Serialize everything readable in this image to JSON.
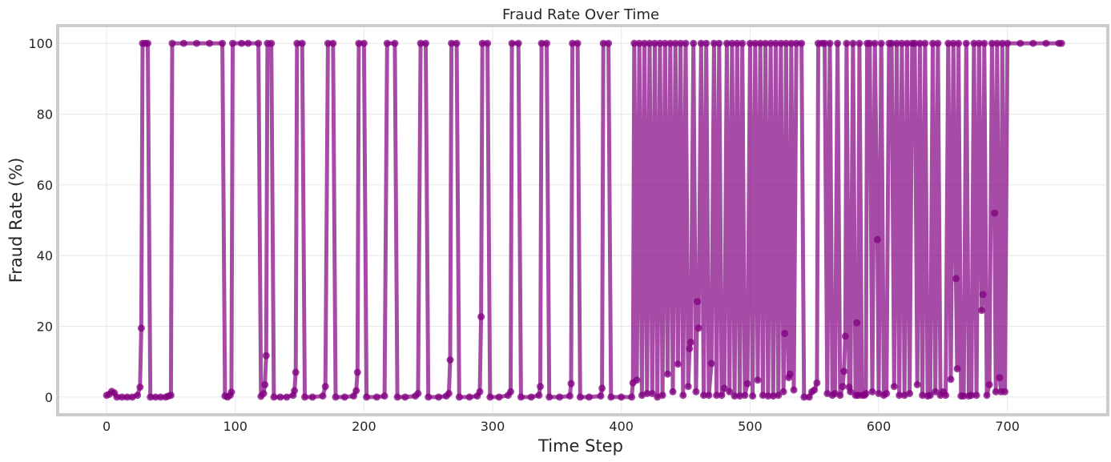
{
  "chart_data": {
    "type": "line",
    "title": "Fraud Rate Over Time",
    "xlabel": "Time Step",
    "ylabel": "Fraud Rate (%)",
    "xlim": [
      -38,
      778
    ],
    "ylim": [
      -5,
      105
    ],
    "x_ticks": [
      0,
      100,
      200,
      300,
      400,
      500,
      600,
      700
    ],
    "y_ticks": [
      0,
      20,
      40,
      60,
      80,
      100
    ],
    "grid": true,
    "legend": "none",
    "colors": {
      "series": "#800080",
      "frame": "#cccccc",
      "grid": "#e8e8e8",
      "text": "#262626"
    },
    "series": [
      {
        "markers": true,
        "points": [
          [
            0,
            0.5
          ],
          [
            2,
            0.8
          ],
          [
            4,
            1.6
          ],
          [
            6,
            1.2
          ],
          [
            8,
            0
          ],
          [
            12,
            0
          ],
          [
            16,
            0
          ],
          [
            20,
            0
          ],
          [
            24,
            0.5
          ],
          [
            26,
            2.8
          ],
          [
            27,
            19.5
          ],
          [
            28,
            100
          ],
          [
            30,
            100
          ],
          [
            32,
            100
          ],
          [
            34,
            0
          ],
          [
            38,
            0
          ],
          [
            42,
            0
          ],
          [
            46,
            0
          ],
          [
            48,
            0.3
          ],
          [
            50,
            0.5
          ],
          [
            51,
            100
          ],
          [
            60,
            100
          ],
          [
            70,
            100
          ],
          [
            80,
            100
          ],
          [
            90,
            100
          ],
          [
            92,
            0.3
          ],
          [
            94,
            0
          ],
          [
            96,
            0.5
          ],
          [
            97,
            1.4
          ],
          [
            98,
            100
          ],
          [
            105,
            100
          ],
          [
            110,
            100
          ],
          [
            118,
            100
          ],
          [
            120,
            0.2
          ],
          [
            122,
            1
          ],
          [
            123,
            3.5
          ],
          [
            124,
            11.7
          ],
          [
            125,
            100
          ],
          [
            128,
            100
          ],
          [
            130,
            0
          ],
          [
            135,
            0
          ],
          [
            140,
            0
          ],
          [
            145,
            0.5
          ],
          [
            146,
            1.8
          ],
          [
            147,
            7
          ],
          [
            148,
            100
          ],
          [
            152,
            100
          ],
          [
            154,
            0
          ],
          [
            160,
            0
          ],
          [
            168,
            0.3
          ],
          [
            170,
            3
          ],
          [
            172,
            100
          ],
          [
            176,
            100
          ],
          [
            178,
            0
          ],
          [
            185,
            0
          ],
          [
            192,
            0.3
          ],
          [
            194,
            1.8
          ],
          [
            195,
            7
          ],
          [
            196,
            100
          ],
          [
            200,
            100
          ],
          [
            202,
            0
          ],
          [
            210,
            0
          ],
          [
            216,
            0.3
          ],
          [
            218,
            100
          ],
          [
            224,
            100
          ],
          [
            226,
            0
          ],
          [
            232,
            0
          ],
          [
            240,
            0.3
          ],
          [
            242,
            1
          ],
          [
            244,
            100
          ],
          [
            248,
            100
          ],
          [
            250,
            0
          ],
          [
            258,
            0
          ],
          [
            264,
            0.3
          ],
          [
            266,
            1
          ],
          [
            267,
            10.5
          ],
          [
            268,
            100
          ],
          [
            272,
            100
          ],
          [
            274,
            0
          ],
          [
            282,
            0
          ],
          [
            288,
            0.3
          ],
          [
            290,
            1.5
          ],
          [
            291,
            22.7
          ],
          [
            292,
            100
          ],
          [
            296,
            100
          ],
          [
            298,
            0
          ],
          [
            305,
            0
          ],
          [
            312,
            0.5
          ],
          [
            314,
            1.5
          ],
          [
            315,
            100
          ],
          [
            320,
            100
          ],
          [
            322,
            0
          ],
          [
            330,
            0
          ],
          [
            336,
            0.5
          ],
          [
            337,
            3
          ],
          [
            338,
            100
          ],
          [
            342,
            100
          ],
          [
            344,
            0
          ],
          [
            352,
            0
          ],
          [
            360,
            0.3
          ],
          [
            361,
            3.8
          ],
          [
            362,
            100
          ],
          [
            366,
            100
          ],
          [
            368,
            0
          ],
          [
            375,
            0
          ],
          [
            384,
            0.3
          ],
          [
            385,
            2.5
          ],
          [
            386,
            100
          ],
          [
            390,
            100
          ],
          [
            392,
            0
          ],
          [
            400,
            0
          ],
          [
            408,
            0
          ],
          [
            409,
            4
          ],
          [
            410,
            100
          ],
          [
            412,
            4.8
          ],
          [
            414,
            100
          ],
          [
            416,
            0.5
          ],
          [
            418,
            100
          ],
          [
            420,
            1
          ],
          [
            422,
            100
          ],
          [
            424,
            1
          ],
          [
            426,
            100
          ],
          [
            428,
            0
          ],
          [
            430,
            100
          ],
          [
            432,
            0.5
          ],
          [
            434,
            100
          ],
          [
            436,
            6.5
          ],
          [
            438,
            100
          ],
          [
            440,
            1.5
          ],
          [
            442,
            100
          ],
          [
            444,
            9.3
          ],
          [
            446,
            100
          ],
          [
            448,
            0.5
          ],
          [
            450,
            100
          ],
          [
            452,
            3
          ],
          [
            453,
            13.7
          ],
          [
            454,
            15.5
          ],
          [
            456,
            100
          ],
          [
            458,
            1.5
          ],
          [
            459,
            27
          ],
          [
            460,
            19.5
          ],
          [
            462,
            100
          ],
          [
            464,
            0.5
          ],
          [
            466,
            100
          ],
          [
            468,
            0.5
          ],
          [
            470,
            9.5
          ],
          [
            472,
            100
          ],
          [
            474,
            0.5
          ],
          [
            476,
            100
          ],
          [
            478,
            0.5
          ],
          [
            480,
            2.5
          ],
          [
            482,
            100
          ],
          [
            484,
            1.5
          ],
          [
            486,
            100
          ],
          [
            488,
            0.3
          ],
          [
            490,
            100
          ],
          [
            492,
            0.3
          ],
          [
            494,
            100
          ],
          [
            496,
            0.5
          ],
          [
            498,
            3.8
          ],
          [
            500,
            100
          ],
          [
            502,
            0.3
          ],
          [
            504,
            100
          ],
          [
            506,
            4.8
          ],
          [
            508,
            100
          ],
          [
            510,
            0.5
          ],
          [
            512,
            100
          ],
          [
            514,
            0.3
          ],
          [
            516,
            100
          ],
          [
            518,
            0.3
          ],
          [
            520,
            100
          ],
          [
            522,
            0.5
          ],
          [
            524,
            100
          ],
          [
            526,
            1.5
          ],
          [
            527,
            18
          ],
          [
            528,
            100
          ],
          [
            530,
            5.5
          ],
          [
            531,
            6.5
          ],
          [
            532,
            100
          ],
          [
            534,
            2
          ],
          [
            536,
            100
          ],
          [
            540,
            100
          ],
          [
            542,
            0
          ],
          [
            546,
            0
          ],
          [
            548,
            1.5
          ],
          [
            550,
            2
          ],
          [
            552,
            4
          ],
          [
            553,
            100
          ],
          [
            556,
            100
          ],
          [
            558,
            100
          ],
          [
            560,
            1
          ],
          [
            562,
            100
          ],
          [
            564,
            0.5
          ],
          [
            566,
            1
          ],
          [
            568,
            100
          ],
          [
            570,
            0.5
          ],
          [
            572,
            3
          ],
          [
            573,
            7.3
          ],
          [
            574,
            17.2
          ],
          [
            575,
            100
          ],
          [
            577,
            2.8
          ],
          [
            578,
            1.5
          ],
          [
            580,
            100
          ],
          [
            582,
            0.5
          ],
          [
            583,
            21
          ],
          [
            584,
            0.5
          ],
          [
            585,
            100
          ],
          [
            587,
            0.5
          ],
          [
            589,
            0.5
          ],
          [
            590,
            1
          ],
          [
            591,
            100
          ],
          [
            593,
            100
          ],
          [
            595,
            1.5
          ],
          [
            597,
            100
          ],
          [
            599,
            44.5
          ],
          [
            600,
            1
          ],
          [
            602,
            100
          ],
          [
            604,
            0.5
          ],
          [
            606,
            1
          ],
          [
            608,
            100
          ],
          [
            610,
            100
          ],
          [
            612,
            3
          ],
          [
            614,
            100
          ],
          [
            616,
            0.5
          ],
          [
            618,
            100
          ],
          [
            620,
            0.5
          ],
          [
            622,
            100
          ],
          [
            624,
            1
          ],
          [
            626,
            100
          ],
          [
            628,
            100
          ],
          [
            630,
            3.5
          ],
          [
            632,
            100
          ],
          [
            634,
            0.5
          ],
          [
            636,
            100
          ],
          [
            638,
            0.3
          ],
          [
            640,
            0.5
          ],
          [
            642,
            100
          ],
          [
            644,
            1.5
          ],
          [
            646,
            100
          ],
          [
            648,
            0.5
          ],
          [
            650,
            1.5
          ],
          [
            652,
            0.5
          ],
          [
            654,
            100
          ],
          [
            656,
            5
          ],
          [
            658,
            100
          ],
          [
            660,
            33.5
          ],
          [
            661,
            8
          ],
          [
            662,
            100
          ],
          [
            664,
            0.3
          ],
          [
            666,
            0.3
          ],
          [
            668,
            100
          ],
          [
            670,
            0.3
          ],
          [
            672,
            0.5
          ],
          [
            674,
            100
          ],
          [
            676,
            0.5
          ],
          [
            678,
            100
          ],
          [
            680,
            24.5
          ],
          [
            681,
            29
          ],
          [
            682,
            100
          ],
          [
            684,
            0.5
          ],
          [
            686,
            3.5
          ],
          [
            688,
            100
          ],
          [
            690,
            52
          ],
          [
            691,
            1.5
          ],
          [
            692,
            100
          ],
          [
            694,
            5.5
          ],
          [
            695,
            1.5
          ],
          [
            696,
            100
          ],
          [
            698,
            1.5
          ],
          [
            700,
            100
          ],
          [
            710,
            100
          ],
          [
            720,
            100
          ],
          [
            730,
            100
          ],
          [
            740,
            100
          ],
          [
            742,
            100
          ]
        ]
      }
    ]
  }
}
